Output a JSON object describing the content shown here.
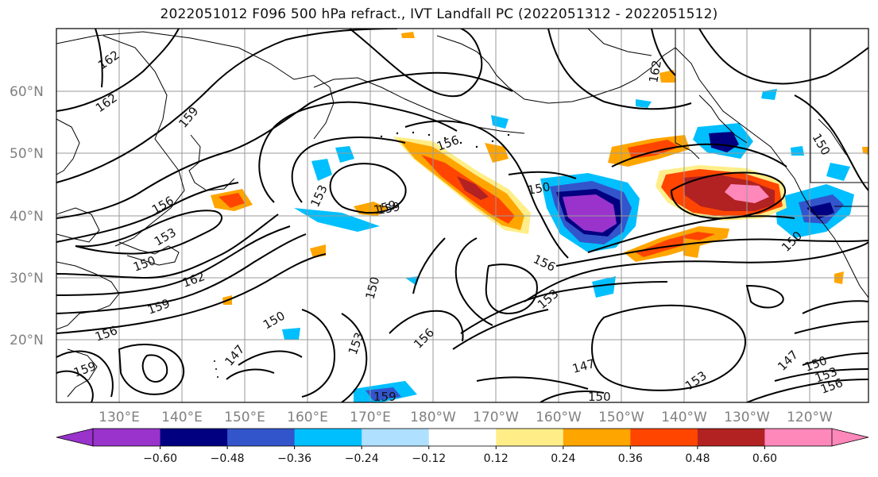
{
  "title": "2022051012 F096 500 hPa refract., IVT Landfall PC (2022051312 - 2022051512)",
  "map": {
    "lat_ticks": [
      "60°N",
      "50°N",
      "40°N",
      "30°N",
      "20°N"
    ],
    "lon_ticks": [
      "130°E",
      "140°E",
      "150°E",
      "160°E",
      "170°E",
      "180°W",
      "170°W",
      "160°W",
      "150°W",
      "140°W",
      "130°W",
      "120°W"
    ],
    "contour_labels": [
      "162",
      "162",
      "159",
      "156",
      "153",
      "150",
      "162",
      "159",
      "156",
      "159",
      "153",
      "150",
      "147",
      "150",
      "153",
      "156",
      "156",
      "153",
      "150",
      "159",
      "156",
      "147",
      "153",
      "150",
      "147",
      "150",
      "153",
      "156",
      "159",
      "162",
      "159",
      "150",
      "150"
    ]
  },
  "colorbar": {
    "ticks": [
      "−0.60",
      "−0.48",
      "−0.36",
      "−0.24",
      "−0.12",
      "0.12",
      "0.24",
      "0.36",
      "0.48",
      "0.60"
    ],
    "colors": [
      "#9933cc",
      "#000080",
      "#3355cc",
      "#00bfff",
      "#b0e0ff",
      "#ffffff",
      "#ffee88",
      "#ffa500",
      "#ff4500",
      "#b22222",
      "#ff88bb"
    ]
  }
}
